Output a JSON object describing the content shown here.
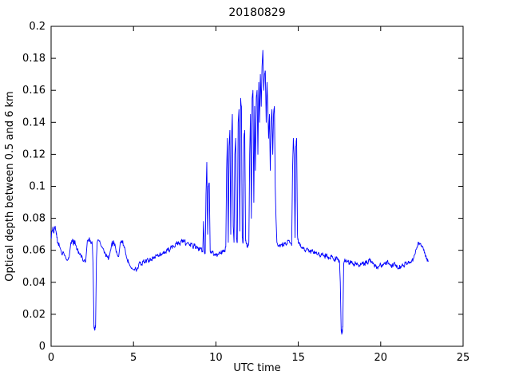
{
  "figure": {
    "background": "#ffffff",
    "axes_color": "#000000"
  },
  "chart_data": {
    "type": "line",
    "title": "20180829",
    "xlabel": "UTC time",
    "ylabel": "Optical depth between 0.5 and 6 km",
    "xlim": [
      0,
      25
    ],
    "ylim": [
      0,
      0.2
    ],
    "xticks": [
      0,
      5,
      10,
      15,
      20,
      25
    ],
    "xtick_labels": [
      "0",
      "5",
      "10",
      "15",
      "20",
      "25"
    ],
    "yticks": [
      0,
      0.02,
      0.04,
      0.06,
      0.08,
      0.1,
      0.12,
      0.14,
      0.16,
      0.18,
      0.2
    ],
    "ytick_labels": [
      "0",
      "0.02",
      "0.04",
      "0.06",
      "0.08",
      "0.1",
      "0.12",
      "0.14",
      "0.16",
      "0.18",
      "0.2"
    ],
    "grid": false,
    "legend": null,
    "line_color": "#0000ff",
    "line_width": 0.9,
    "series": [
      {
        "name": "optical-depth-timeseries",
        "points": [
          [
            0,
            0.068
          ],
          [
            0.05,
            0.072
          ],
          [
            0.1,
            0.074
          ],
          [
            0.15,
            0.071
          ],
          [
            0.2,
            0.073
          ],
          [
            0.25,
            0.075
          ],
          [
            0.3,
            0.072
          ],
          [
            0.35,
            0.068
          ],
          [
            0.4,
            0.065
          ],
          [
            0.5,
            0.063
          ],
          [
            0.6,
            0.06
          ],
          [
            0.7,
            0.058
          ],
          [
            0.8,
            0.057
          ],
          [
            0.9,
            0.055
          ],
          [
            1,
            0.054
          ],
          [
            1.1,
            0.056
          ],
          [
            1.2,
            0.065
          ],
          [
            1.3,
            0.067
          ],
          [
            1.35,
            0.064
          ],
          [
            1.4,
            0.066
          ],
          [
            1.5,
            0.063
          ],
          [
            1.6,
            0.06
          ],
          [
            1.7,
            0.058
          ],
          [
            1.8,
            0.057
          ],
          [
            1.9,
            0.055
          ],
          [
            2,
            0.054
          ],
          [
            2.1,
            0.053
          ],
          [
            2.2,
            0.066
          ],
          [
            2.3,
            0.067
          ],
          [
            2.4,
            0.065
          ],
          [
            2.5,
            0.064
          ],
          [
            2.55,
            0.05
          ],
          [
            2.6,
            0.012
          ],
          [
            2.65,
            0.01
          ],
          [
            2.7,
            0.013
          ],
          [
            2.75,
            0.055
          ],
          [
            2.8,
            0.065
          ],
          [
            2.9,
            0.066
          ],
          [
            3,
            0.064
          ],
          [
            3.1,
            0.062
          ],
          [
            3.2,
            0.06
          ],
          [
            3.3,
            0.058
          ],
          [
            3.4,
            0.056
          ],
          [
            3.5,
            0.055
          ],
          [
            3.6,
            0.06
          ],
          [
            3.7,
            0.065
          ],
          [
            3.75,
            0.063
          ],
          [
            3.8,
            0.066
          ],
          [
            3.9,
            0.062
          ],
          [
            4,
            0.058
          ],
          [
            4.1,
            0.056
          ],
          [
            4.2,
            0.065
          ],
          [
            4.3,
            0.066
          ],
          [
            4.4,
            0.063
          ],
          [
            4.5,
            0.06
          ],
          [
            4.6,
            0.055
          ],
          [
            4.7,
            0.052
          ],
          [
            4.8,
            0.05
          ],
          [
            4.9,
            0.049
          ],
          [
            5,
            0.048
          ],
          [
            5.1,
            0.049
          ],
          [
            5.2,
            0.048
          ],
          [
            5.3,
            0.05
          ],
          [
            5.4,
            0.052
          ],
          [
            5.5,
            0.051
          ],
          [
            5.6,
            0.053
          ],
          [
            5.7,
            0.052
          ],
          [
            5.8,
            0.054
          ],
          [
            5.9,
            0.053
          ],
          [
            6,
            0.055
          ],
          [
            6.1,
            0.054
          ],
          [
            6.2,
            0.056
          ],
          [
            6.3,
            0.055
          ],
          [
            6.4,
            0.057
          ],
          [
            6.5,
            0.056
          ],
          [
            6.6,
            0.058
          ],
          [
            6.7,
            0.057
          ],
          [
            6.8,
            0.059
          ],
          [
            6.9,
            0.058
          ],
          [
            7,
            0.06
          ],
          [
            7.1,
            0.061
          ],
          [
            7.2,
            0.06
          ],
          [
            7.3,
            0.062
          ],
          [
            7.4,
            0.063
          ],
          [
            7.5,
            0.062
          ],
          [
            7.6,
            0.064
          ],
          [
            7.7,
            0.065
          ],
          [
            7.8,
            0.064
          ],
          [
            7.9,
            0.066
          ],
          [
            8,
            0.065
          ],
          [
            8.1,
            0.066
          ],
          [
            8.2,
            0.064
          ],
          [
            8.3,
            0.065
          ],
          [
            8.4,
            0.063
          ],
          [
            8.5,
            0.064
          ],
          [
            8.6,
            0.062
          ],
          [
            8.7,
            0.063
          ],
          [
            8.8,
            0.061
          ],
          [
            8.9,
            0.062
          ],
          [
            9,
            0.06
          ],
          [
            9.1,
            0.061
          ],
          [
            9.2,
            0.059
          ],
          [
            9.25,
            0.078
          ],
          [
            9.3,
            0.06
          ],
          [
            9.35,
            0.058
          ],
          [
            9.4,
            0.095
          ],
          [
            9.45,
            0.115
          ],
          [
            9.5,
            0.07
          ],
          [
            9.55,
            0.1
          ],
          [
            9.6,
            0.102
          ],
          [
            9.65,
            0.06
          ],
          [
            9.7,
            0.058
          ],
          [
            9.8,
            0.059
          ],
          [
            9.9,
            0.057
          ],
          [
            10,
            0.058
          ],
          [
            10.1,
            0.057
          ],
          [
            10.2,
            0.059
          ],
          [
            10.3,
            0.058
          ],
          [
            10.4,
            0.06
          ],
          [
            10.5,
            0.059
          ],
          [
            10.6,
            0.062
          ],
          [
            10.65,
            0.11
          ],
          [
            10.7,
            0.13
          ],
          [
            10.75,
            0.065
          ],
          [
            10.8,
            0.125
          ],
          [
            10.85,
            0.135
          ],
          [
            10.9,
            0.07
          ],
          [
            10.95,
            0.13
          ],
          [
            11,
            0.145
          ],
          [
            11.05,
            0.075
          ],
          [
            11.1,
            0.065
          ],
          [
            11.15,
            0.12
          ],
          [
            11.2,
            0.13
          ],
          [
            11.25,
            0.068
          ],
          [
            11.3,
            0.065
          ],
          [
            11.35,
            0.14
          ],
          [
            11.4,
            0.148
          ],
          [
            11.45,
            0.072
          ],
          [
            11.5,
            0.155
          ],
          [
            11.55,
            0.15
          ],
          [
            11.6,
            0.068
          ],
          [
            11.65,
            0.065
          ],
          [
            11.7,
            0.13
          ],
          [
            11.75,
            0.135
          ],
          [
            11.8,
            0.066
          ],
          [
            11.85,
            0.064
          ],
          [
            11.9,
            0.062
          ],
          [
            11.95,
            0.063
          ],
          [
            12,
            0.065
          ],
          [
            12.05,
            0.12
          ],
          [
            12.1,
            0.145
          ],
          [
            12.15,
            0.08
          ],
          [
            12.2,
            0.155
          ],
          [
            12.25,
            0.16
          ],
          [
            12.3,
            0.09
          ],
          [
            12.35,
            0.15
          ],
          [
            12.4,
            0.11
          ],
          [
            12.45,
            0.155
          ],
          [
            12.5,
            0.16
          ],
          [
            12.55,
            0.12
          ],
          [
            12.6,
            0.165
          ],
          [
            12.65,
            0.14
          ],
          [
            12.7,
            0.17
          ],
          [
            12.75,
            0.15
          ],
          [
            12.8,
            0.175
          ],
          [
            12.85,
            0.185
          ],
          [
            12.9,
            0.16
          ],
          [
            12.95,
            0.17
          ],
          [
            13,
            0.172
          ],
          [
            13.05,
            0.14
          ],
          [
            13.1,
            0.165
          ],
          [
            13.15,
            0.15
          ],
          [
            13.2,
            0.13
          ],
          [
            13.25,
            0.145
          ],
          [
            13.3,
            0.11
          ],
          [
            13.35,
            0.14
          ],
          [
            13.4,
            0.148
          ],
          [
            13.45,
            0.12
          ],
          [
            13.5,
            0.145
          ],
          [
            13.55,
            0.15
          ],
          [
            13.6,
            0.1
          ],
          [
            13.65,
            0.08
          ],
          [
            13.7,
            0.065
          ],
          [
            13.8,
            0.063
          ],
          [
            13.9,
            0.062
          ],
          [
            14,
            0.064
          ],
          [
            14.1,
            0.063
          ],
          [
            14.2,
            0.065
          ],
          [
            14.3,
            0.064
          ],
          [
            14.4,
            0.066
          ],
          [
            14.5,
            0.065
          ],
          [
            14.6,
            0.063
          ],
          [
            14.65,
            0.11
          ],
          [
            14.7,
            0.13
          ],
          [
            14.75,
            0.12
          ],
          [
            14.8,
            0.068
          ],
          [
            14.85,
            0.125
          ],
          [
            14.9,
            0.13
          ],
          [
            14.95,
            0.07
          ],
          [
            15,
            0.065
          ],
          [
            15.1,
            0.063
          ],
          [
            15.2,
            0.062
          ],
          [
            15.3,
            0.061
          ],
          [
            15.4,
            0.06
          ],
          [
            15.5,
            0.061
          ],
          [
            15.6,
            0.06
          ],
          [
            15.7,
            0.059
          ],
          [
            15.8,
            0.06
          ],
          [
            15.9,
            0.059
          ],
          [
            16,
            0.058
          ],
          [
            16.1,
            0.059
          ],
          [
            16.2,
            0.058
          ],
          [
            16.3,
            0.057
          ],
          [
            16.4,
            0.058
          ],
          [
            16.5,
            0.057
          ],
          [
            16.6,
            0.056
          ],
          [
            16.7,
            0.057
          ],
          [
            16.8,
            0.056
          ],
          [
            16.9,
            0.055
          ],
          [
            17,
            0.056
          ],
          [
            17.1,
            0.055
          ],
          [
            17.2,
            0.054
          ],
          [
            17.3,
            0.055
          ],
          [
            17.4,
            0.054
          ],
          [
            17.5,
            0.053
          ],
          [
            17.55,
            0.04
          ],
          [
            17.6,
            0.01
          ],
          [
            17.65,
            0.008
          ],
          [
            17.7,
            0.012
          ],
          [
            17.75,
            0.05
          ],
          [
            17.8,
            0.053
          ],
          [
            17.9,
            0.054
          ],
          [
            18,
            0.053
          ],
          [
            18.1,
            0.052
          ],
          [
            18.2,
            0.053
          ],
          [
            18.3,
            0.052
          ],
          [
            18.4,
            0.051
          ],
          [
            18.5,
            0.052
          ],
          [
            18.6,
            0.051
          ],
          [
            18.7,
            0.05
          ],
          [
            18.8,
            0.051
          ],
          [
            18.9,
            0.052
          ],
          [
            19,
            0.051
          ],
          [
            19.1,
            0.053
          ],
          [
            19.2,
            0.052
          ],
          [
            19.3,
            0.054
          ],
          [
            19.4,
            0.053
          ],
          [
            19.5,
            0.052
          ],
          [
            19.6,
            0.051
          ],
          [
            19.7,
            0.05
          ],
          [
            19.8,
            0.049
          ],
          [
            19.9,
            0.05
          ],
          [
            20,
            0.051
          ],
          [
            20.1,
            0.05
          ],
          [
            20.2,
            0.052
          ],
          [
            20.3,
            0.051
          ],
          [
            20.4,
            0.053
          ],
          [
            20.5,
            0.052
          ],
          [
            20.6,
            0.051
          ],
          [
            20.7,
            0.05
          ],
          [
            20.8,
            0.052
          ],
          [
            20.9,
            0.051
          ],
          [
            21,
            0.05
          ],
          [
            21.1,
            0.049
          ],
          [
            21.2,
            0.05
          ],
          [
            21.3,
            0.051
          ],
          [
            21.4,
            0.05
          ],
          [
            21.5,
            0.052
          ],
          [
            21.6,
            0.051
          ],
          [
            21.7,
            0.053
          ],
          [
            21.8,
            0.052
          ],
          [
            21.9,
            0.054
          ],
          [
            22,
            0.055
          ],
          [
            22.1,
            0.058
          ],
          [
            22.2,
            0.062
          ],
          [
            22.3,
            0.065
          ],
          [
            22.4,
            0.064
          ],
          [
            22.5,
            0.062
          ],
          [
            22.6,
            0.06
          ],
          [
            22.7,
            0.057
          ],
          [
            22.8,
            0.055
          ],
          [
            22.9,
            0.053
          ]
        ]
      }
    ]
  }
}
